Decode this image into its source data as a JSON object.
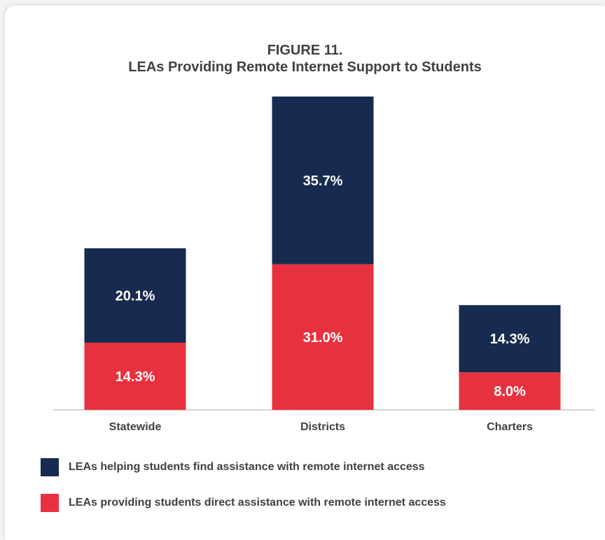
{
  "chart_data": {
    "type": "bar",
    "stacked": true,
    "title": "FIGURE 11.",
    "subtitle": "LEAs Providing Remote Internet Support to Students",
    "categories": [
      "Statewide",
      "Districts",
      "Charters"
    ],
    "series": [
      {
        "name": "LEAs providing students direct assistance with remote internet access",
        "color": "#e8313f",
        "values": [
          14.3,
          31.0,
          8.0
        ],
        "labels": [
          "14.3%",
          "31.0%",
          "8.0%"
        ]
      },
      {
        "name": "LEAs helping students find assistance with remote internet access",
        "color": "#172a4f",
        "values": [
          20.1,
          35.7,
          14.3
        ],
        "labels": [
          "20.1%",
          "35.7%",
          "14.3%"
        ]
      }
    ],
    "ylim": [
      0,
      66.7
    ],
    "grid": false,
    "legend_position": "bottom"
  },
  "legend": [
    {
      "label": "LEAs helping students find assistance with remote internet access",
      "color": "#172a4f"
    },
    {
      "label": "LEAs providing students direct assistance with remote internet access",
      "color": "#e8313f"
    }
  ]
}
